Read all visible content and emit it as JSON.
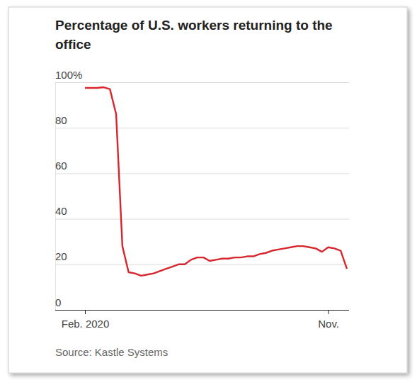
{
  "chart_data": {
    "type": "line",
    "title": "Percentage of U.S. workers returning to the office",
    "source": "Source: Kastle Systems",
    "categories": [
      "Feb. 2020",
      null,
      null,
      null,
      null,
      null,
      null,
      null,
      null,
      null,
      null,
      null,
      null,
      null,
      null,
      null,
      null,
      null,
      null,
      null,
      null,
      null,
      null,
      null,
      null,
      null,
      null,
      null,
      null,
      null,
      null,
      null,
      null,
      null,
      null,
      null,
      null,
      null,
      null,
      "Nov.",
      null,
      null,
      null
    ],
    "values": [
      97.5,
      97.5,
      97.5,
      97.8,
      97,
      86,
      28,
      16.5,
      16,
      15,
      15.5,
      16,
      17,
      18,
      19,
      20,
      20,
      22,
      23,
      23,
      21.5,
      22,
      22.5,
      22.5,
      23,
      23,
      23.5,
      23.5,
      24.5,
      25,
      26,
      26.5,
      27,
      27.5,
      28,
      28,
      27.5,
      27,
      25.5,
      27.5,
      27,
      26,
      18
    ],
    "color": "#d7262e",
    "ylim": [
      0,
      100
    ],
    "yticks": [
      0,
      20,
      40,
      60,
      80,
      {
        "value": 100,
        "label": "100%"
      }
    ],
    "grid": true
  }
}
